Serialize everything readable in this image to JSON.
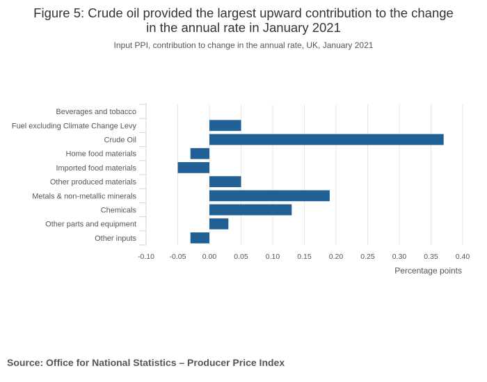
{
  "title_lines": [
    "Figure 5: Crude oil provided the largest upward contribution to the change",
    "in the annual rate in January 2021"
  ],
  "subtitle": "Input PPI, contribution to change in the annual rate, UK, January 2021",
  "source": "Source: Office for National Statistics – Producer Price Index",
  "colors": {
    "bar": "#206095",
    "grid": "#e6e6e6",
    "axis": "#ccd6eb"
  },
  "chart_data": {
    "type": "bar",
    "orientation": "horizontal",
    "title": "Figure 5: Crude oil provided the largest upward contribution to the change in the annual rate in January 2021",
    "subtitle": "Input PPI, contribution to change in the annual rate, UK, January 2021",
    "xlabel": "Percentage points",
    "ylabel": "",
    "xlim": [
      -0.1,
      0.4
    ],
    "xticks": [
      "-0.10",
      "-0.05",
      "0.00",
      "0.05",
      "0.10",
      "0.15",
      "0.20",
      "0.25",
      "0.30",
      "0.35",
      "0.40"
    ],
    "grid": true,
    "categories": [
      "Beverages and tobacco",
      "Fuel excluding Climate Change Levy",
      "Crude Oil",
      "Home food materials",
      "Imported food materials",
      "Other produced materials",
      "Metals & non-metallic minerals",
      "Chemicals",
      "Other parts and equipment",
      "Other inputs"
    ],
    "values": [
      0.0,
      0.05,
      0.37,
      -0.03,
      -0.05,
      0.05,
      0.19,
      0.13,
      0.03,
      -0.03
    ]
  }
}
